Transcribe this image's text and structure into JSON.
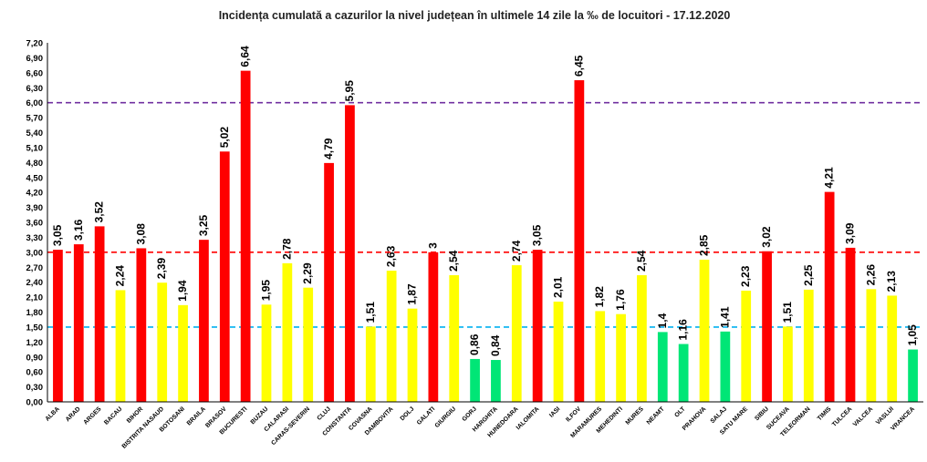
{
  "chart_data": {
    "type": "bar",
    "title": "Incidența cumulată a cazurilor la nivel județean în ultimele 14 zile la ‰ de locuitori - 17.12.2020",
    "xlabel": "",
    "ylabel": "",
    "ylim": [
      0,
      7.2
    ],
    "ytick_step": 0.3,
    "grid": false,
    "legend": "none",
    "categories": [
      "ALBA",
      "ARAD",
      "ARGES",
      "BACAU",
      "BIHOR",
      "BISTRITA NASAUD",
      "BOTOSANI",
      "BRAILA",
      "BRASOV",
      "BUCURESTI",
      "BUZAU",
      "CALARASI",
      "CARAS-SEVERIN",
      "CLUJ",
      "CONSTANTA",
      "COVASNA",
      "DAMBOVITA",
      "DOLJ",
      "GALATI",
      "GIURGIU",
      "GORJ",
      "HARGHITA",
      "HUNEDOARA",
      "IALOMITA",
      "IASI",
      "ILFOV",
      "MARAMURES",
      "MEHEDINTI",
      "MURES",
      "NEAMT",
      "OLT",
      "PRAHOVA",
      "SALAJ",
      "SATU MARE",
      "SIBIU",
      "SUCEAVA",
      "TELEORMAN",
      "TIMIS",
      "TULCEA",
      "VALCEA",
      "VASLUI",
      "VRANCEA"
    ],
    "values": [
      3.05,
      3.16,
      3.52,
      2.24,
      3.08,
      2.39,
      1.94,
      3.25,
      5.02,
      6.64,
      1.95,
      2.78,
      2.29,
      4.79,
      5.95,
      1.51,
      2.63,
      1.87,
      3,
      2.54,
      0.86,
      0.84,
      2.74,
      3.05,
      2.01,
      6.45,
      1.82,
      1.76,
      2.54,
      1.4,
      1.16,
      2.85,
      1.41,
      2.23,
      3.02,
      1.51,
      2.25,
      4.21,
      3.09,
      2.26,
      2.13,
      1.05
    ],
    "value_labels": [
      "3,05",
      "3,16",
      "3,52",
      "2,24",
      "3,08",
      "2,39",
      "1,94",
      "3,25",
      "5,02",
      "6,64",
      "1,95",
      "2,78",
      "2,29",
      "4,79",
      "5,95",
      "1,51",
      "2,63",
      "1,87",
      "3",
      "2,54",
      "0,86",
      "0,84",
      "2,74",
      "3,05",
      "2,01",
      "6,45",
      "1,82",
      "1,76",
      "2,54",
      "1,4",
      "1,16",
      "2,85",
      "1,41",
      "2,23",
      "3,02",
      "1,51",
      "2,25",
      "4,21",
      "3,09",
      "2,26",
      "2,13",
      "1,05"
    ],
    "reference_lines": [
      {
        "value": 6.0,
        "color": "#7030a0"
      },
      {
        "value": 3.0,
        "color": "#ff0000"
      },
      {
        "value": 1.5,
        "color": "#00b0f0"
      }
    ],
    "colors": {
      "above_3": "#ff0000",
      "between_1_5_and_3": "#ffff00",
      "below_1_5": "#00e676"
    }
  }
}
